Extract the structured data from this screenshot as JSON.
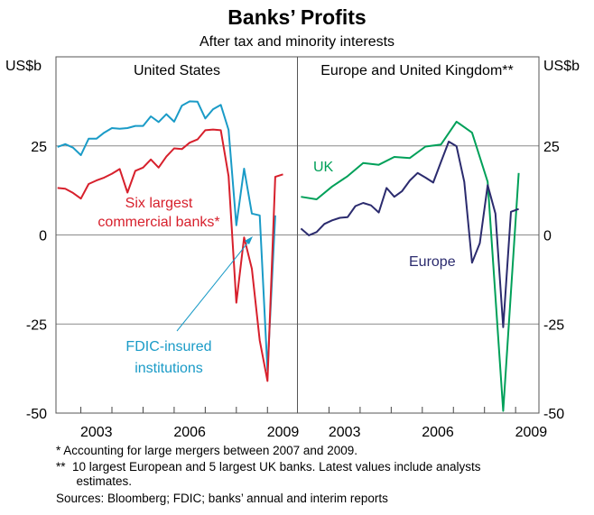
{
  "chart_data": {
    "type": "line",
    "title": "Banks’ Profits",
    "subtitle": "After tax and minority interests",
    "ylabel_left": "US$b",
    "ylabel_right": "US$b",
    "ylim": [
      -50,
      50
    ],
    "yticks": [
      25,
      0,
      -25,
      -50
    ],
    "ytick_labels": [
      "25",
      "0",
      "-25",
      "-50"
    ],
    "grid": true,
    "panels": [
      {
        "title": "United States",
        "xlim": [
          2002.2,
          2009.95
        ],
        "xtick_labels": [
          "2003",
          "2006",
          "2009"
        ],
        "xtick_label_years": [
          2003.5,
          2006.5,
          2009.5
        ],
        "series": [
          {
            "name": "FDIC-insured institutions",
            "label": [
              "FDIC-insured",
              "institutions"
            ],
            "color": "#1a9bc7",
            "x_start": 2002.25,
            "x_step": 0.25,
            "values": [
              24.7,
              25.5,
              24.5,
              22.4,
              27,
              27,
              28.7,
              30,
              29.8,
              30,
              30.6,
              30.6,
              33.3,
              31.7,
              33.9,
              31.8,
              36.3,
              37.5,
              37.4,
              32.7,
              35.3,
              36.5,
              29.5,
              2.7,
              18.6,
              6,
              5.5,
              -38,
              5.5
            ]
          },
          {
            "name": "Six largest commercial banks*",
            "label": [
              "Six largest",
              "commercial banks*"
            ],
            "color": "#d7202c",
            "x_start": 2002.25,
            "x_step": 0.25,
            "values": [
              13.2,
              13,
              11.8,
              10.2,
              14.3,
              15.3,
              16.1,
              17.2,
              18.5,
              11.9,
              18,
              18.9,
              21.2,
              18.9,
              22,
              24.3,
              24.1,
              25.9,
              26.8,
              29.4,
              29.6,
              29.4,
              16.5,
              -19,
              -0.7,
              -9.5,
              -29.6,
              -41,
              16.3,
              17
            ]
          }
        ]
      },
      {
        "title": "Europe and United Kingdom**",
        "xlim": [
          2002.0,
          2009.75
        ],
        "xtick_labels": [
          "2003",
          "2006",
          "2009"
        ],
        "xtick_label_years": [
          2003.5,
          2006.5,
          2009.5
        ],
        "series": [
          {
            "name": "UK",
            "label": [
              "UK"
            ],
            "color": "#00a059",
            "x_start": 2002.1,
            "x_step": 0.5,
            "values": [
              10.7,
              10,
              13.6,
              16.5,
              20.2,
              19.7,
              21.9,
              21.6,
              24.8,
              25.4,
              31.8,
              28.7,
              14.9,
              -49.4,
              17.4
            ]
          },
          {
            "name": "Europe",
            "label": [
              "Europe"
            ],
            "color": "#2b2b6e",
            "x_start": 2002.1,
            "x_step": 0.25,
            "values": [
              1.8,
              -0.1,
              0.8,
              3.1,
              4.1,
              4.8,
              5,
              8.1,
              9,
              8.3,
              6.3,
              13.2,
              10.7,
              12.3,
              15.3,
              17.4,
              16.1,
              14.7,
              20.5,
              26.2,
              24.9,
              14.9,
              -7.8,
              -2.3,
              14,
              6,
              -25.9,
              6.5,
              7.3
            ]
          }
        ]
      }
    ]
  },
  "footnotes": [
    "*   Accounting for large mergers between 2007 and 2009.",
    "**  10 largest European and 5 largest UK banks. Latest values include analysts",
    "      estimates.",
    "Sources: Bloomberg; FDIC; banks’ annual and interim reports"
  ]
}
